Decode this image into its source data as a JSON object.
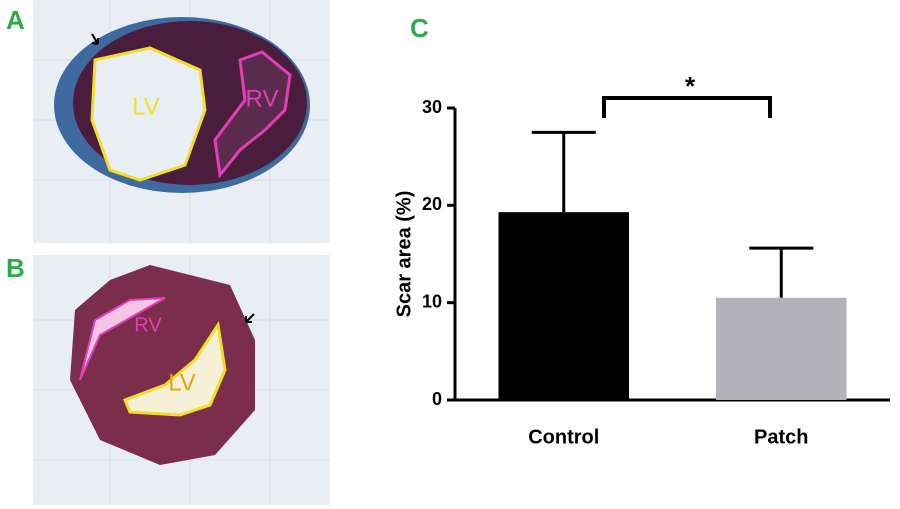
{
  "panels": [
    {
      "label": "A",
      "annotations": [
        "LV",
        "RV"
      ]
    },
    {
      "label": "B",
      "annotations": [
        "RV",
        "LV"
      ]
    }
  ],
  "chart_data": {
    "type": "bar",
    "panel_label": "C",
    "ylabel": "Scar area (%)",
    "categories": [
      "Control",
      "Patch"
    ],
    "values": [
      19.3,
      10.5
    ],
    "errors": [
      8.2,
      5.1
    ],
    "colors": [
      "#000000",
      "#b3b2b8"
    ],
    "ylim": [
      0,
      30
    ],
    "yticks": [
      0,
      10,
      20,
      30
    ],
    "significance": "*"
  }
}
